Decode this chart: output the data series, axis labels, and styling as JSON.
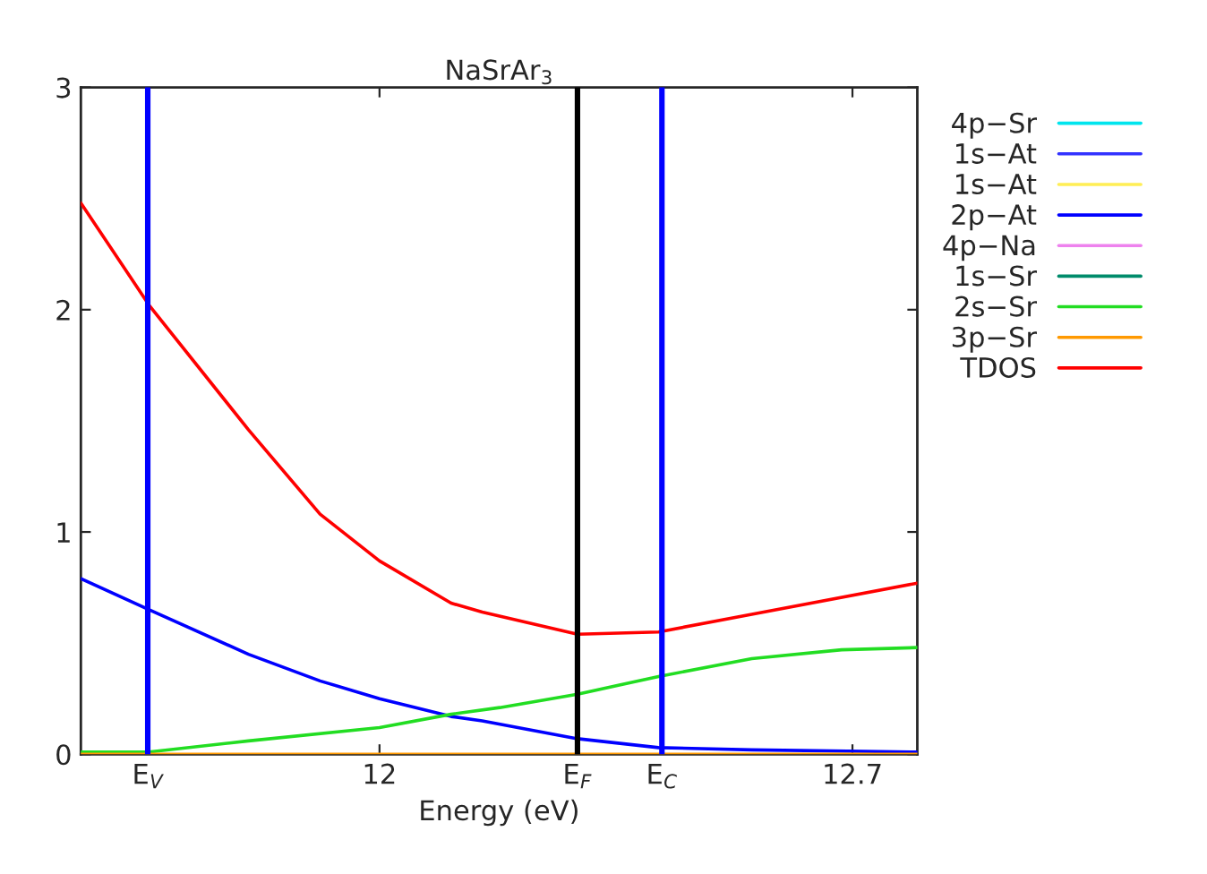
{
  "chart_data": {
    "type": "line",
    "title": "NaSrAr$_{3}$",
    "xlabel": "Energy (eV)",
    "xlim": [
      11.558,
      12.796
    ],
    "ylim": [
      0,
      3
    ],
    "yticks": [
      0,
      1,
      2,
      3
    ],
    "xticks": [
      {
        "value": 11.657,
        "label": "E$_{V}$"
      },
      12,
      {
        "value": 12.293,
        "label": "E$_{F}$"
      },
      {
        "value": 12.418,
        "label": "E$_{C}$"
      },
      12.7
    ],
    "legend": "right",
    "grid": false,
    "line_style": "solid",
    "marker": "none",
    "ref_lines": [
      {
        "axis": "x",
        "value": 11.657,
        "label": null,
        "color": "#0000ff"
      },
      {
        "axis": "x",
        "value": 12.293,
        "label": null,
        "color": "#000000"
      },
      {
        "axis": "x",
        "value": 12.418,
        "label": null,
        "color": "#0000ff"
      }
    ],
    "series": [
      {
        "name": "4p−Sr",
        "color": "#00e5ee"
      },
      {
        "name": "1s−At",
        "color": "#3333ff"
      },
      {
        "name": "1s−At",
        "color": "#ffee55"
      },
      {
        "name": "2p−At",
        "color": "#0000ff",
        "x": [
          11.558,
          11.659,
          11.806,
          11.912,
          12.0,
          12.106,
          12.152,
          12.293,
          12.413,
          12.551,
          12.796
        ],
        "values": [
          0.79,
          0.65,
          0.45,
          0.33,
          0.25,
          0.17,
          0.15,
          0.07,
          0.03,
          0.02,
          0.01
        ]
      },
      {
        "name": "4p−Na",
        "color": "#ee82ee"
      },
      {
        "name": "1s−Sr",
        "color": "#008b6b"
      },
      {
        "name": "2s−Sr",
        "color": "#22dd22",
        "x": [
          11.558,
          11.659,
          11.806,
          12.0,
          12.106,
          12.178,
          12.293,
          12.413,
          12.551,
          12.684,
          12.796
        ],
        "values": [
          0.01,
          0.01,
          0.06,
          0.12,
          0.18,
          0.21,
          0.27,
          0.35,
          0.43,
          0.47,
          0.48
        ]
      },
      {
        "name": "3p−Sr",
        "color": "#ff9900",
        "x": [
          11.558,
          12.796
        ],
        "values": [
          0,
          0
        ]
      },
      {
        "name": "TDOS",
        "color": "#ff0000",
        "x": [
          11.558,
          11.659,
          11.806,
          11.912,
          12.0,
          12.106,
          12.152,
          12.293,
          12.413,
          12.551,
          12.796
        ],
        "values": [
          2.48,
          2.02,
          1.46,
          1.08,
          0.87,
          0.68,
          0.64,
          0.54,
          0.55,
          0.63,
          0.77
        ]
      }
    ]
  }
}
